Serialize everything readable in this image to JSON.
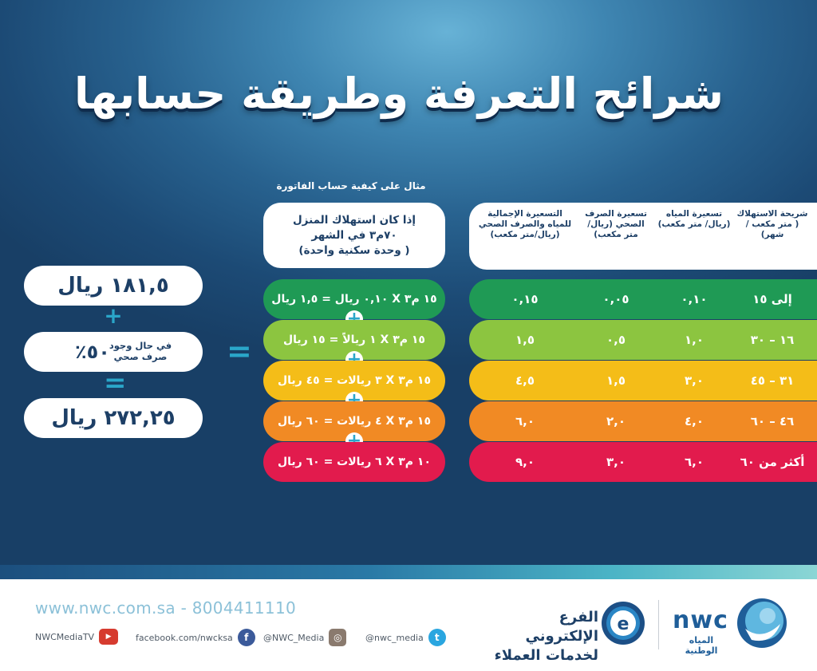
{
  "title": "شرائح التعرفة وطريقة حسابها",
  "colors": {
    "row1": "#1f9a55",
    "row2": "#8cc540",
    "row3": "#f4bd18",
    "row4": "#f18a24",
    "row5": "#e21b4d",
    "accent": "#2aa6c9",
    "navy": "#1d3f66"
  },
  "table": {
    "headers": [
      "شريحة الاستهلاك ( متر مكعب /شهر)",
      "تسعيرة المياه (ريال/ متر مكعب)",
      "تسعيرة الصرف الصحي (ريال/ متر مكعب)",
      "التسعيرة الإجمالية للمياه والصرف الصحي (ريال/متر مكعب)"
    ],
    "rows": [
      {
        "slice": "إلى ١٥",
        "water": "٠,١٠",
        "sewage": "٠,٠٥",
        "total": "٠,١٥"
      },
      {
        "slice": "١٦ – ٣٠",
        "water": "١,٠",
        "sewage": "٠,٥",
        "total": "١,٥"
      },
      {
        "slice": "٣١ – ٤٥",
        "water": "٣,٠",
        "sewage": "١,٥",
        "total": "٤,٥"
      },
      {
        "slice": "٤٦ – ٦٠",
        "water": "٤,٠",
        "sewage": "٢,٠",
        "total": "٦,٠"
      },
      {
        "slice": "أكثر من ٦٠",
        "water": "٦,٠",
        "sewage": "٣,٠",
        "total": "٩,٠"
      }
    ]
  },
  "example": {
    "caption": "مثال على كيفية حساب الفاتورة",
    "header_line1": "إذا كان استهلاك المنزل",
    "header_line2": "٧٠م٣ في الشهر",
    "header_line3": "( وحدة سكنية واحدة)",
    "steps": [
      "١٥ م٣ X ٠,١٠ ريال = ١,٥ ريال",
      "١٥ م٣ X ١ ريالاً = ١٥ ريال",
      "١٥ م٣ X ٣ ريالات = ٤٥ ريال",
      "١٥ م٣ X ٤ ريالات = ٦٠ ريال",
      "١٠ م٣ X ٦ ريالات = ٦٠ ريال"
    ]
  },
  "result": {
    "subtotal": "١٨١,٥ ريال",
    "condition_line1": "في حال وجود",
    "condition_line2": "صرف صحي",
    "percent": "٥٠٪",
    "total": "٢٧٢,٢٥ ريال"
  },
  "footer": {
    "website": "www.nwc.com.sa - 8004411110",
    "twitter": "@nwc_media",
    "instagram": "@NWC_Media",
    "facebook": "facebook.com/nwcksa",
    "youtube": "NWCMediaTV",
    "ebranch_line1": "الفرع الإلكتروني",
    "ebranch_line2": "لخدمات العملاء",
    "nwc_logo": "nwc",
    "nwc_arabic": "المياه الوطنية"
  }
}
